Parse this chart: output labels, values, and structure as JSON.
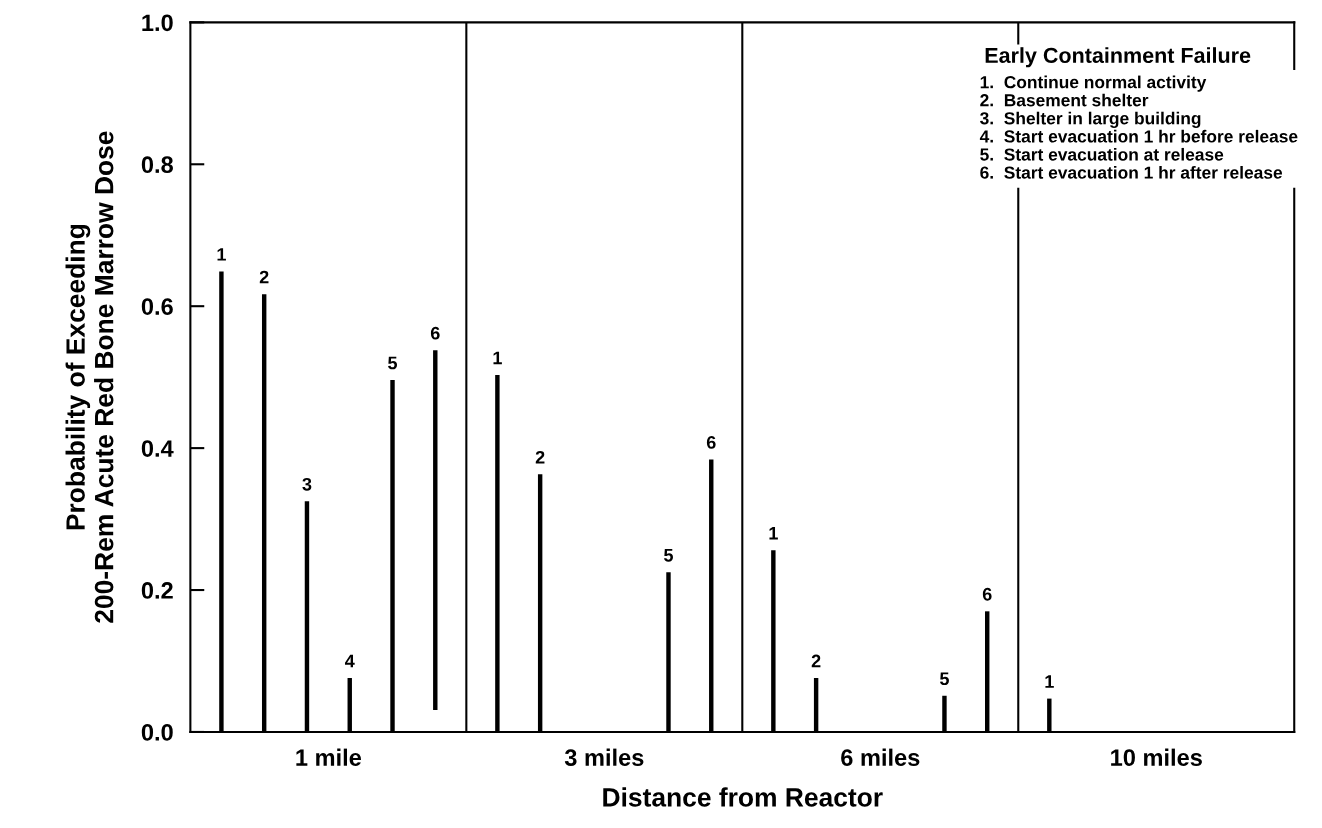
{
  "chart_data": {
    "type": "bar",
    "xlabel": "Distance from Reactor",
    "ylabel": "Probability of Exceeding\n200-Rem Acute Red Bone Marrow Dose",
    "annotations": [
      "Early Containment Failure",
      "1.  Continue normal activity",
      "2.  Basement shelter",
      "3.  Shelter in large building",
      "4.  Start evacuation 1 hr before release",
      "5.  Start evacuation at release",
      "6.  Start evacuation 1 hr after release"
    ],
    "categories": [
      "1 mile",
      "3 miles",
      "6 miles",
      "10 miles"
    ],
    "series": [
      {
        "name": "1",
        "color": "#000000",
        "values": [
          0.649,
          0.503,
          0.256,
          0.047
        ]
      },
      {
        "name": "2",
        "color": "#000000",
        "values": [
          0.617,
          0.363,
          0.076,
          null
        ]
      },
      {
        "name": "3",
        "color": "#000000",
        "values": [
          0.325,
          null,
          null,
          null
        ]
      },
      {
        "name": "4",
        "color": "#000000",
        "values": [
          0.076,
          null,
          null,
          null
        ]
      },
      {
        "name": "5",
        "color": "#000000",
        "values": [
          0.496,
          0.225,
          0.051,
          null
        ]
      },
      {
        "name": "6",
        "color": "#000000",
        "values": [
          0.507,
          0.384,
          0.17,
          null
        ],
        "base": [
          0.031,
          0,
          0,
          null
        ]
      }
    ],
    "ylim": [
      0,
      1.0
    ],
    "yticks": [
      {
        "value": 0,
        "label": "0.0"
      },
      {
        "value": 0.2,
        "label": "0.2"
      },
      {
        "value": 0.4,
        "label": "0.4"
      },
      {
        "value": 0.6,
        "label": "0.6"
      },
      {
        "value": 0.8,
        "label": "0.8"
      },
      {
        "value": 1.0,
        "label": "1.0"
      }
    ],
    "grid": false
  }
}
